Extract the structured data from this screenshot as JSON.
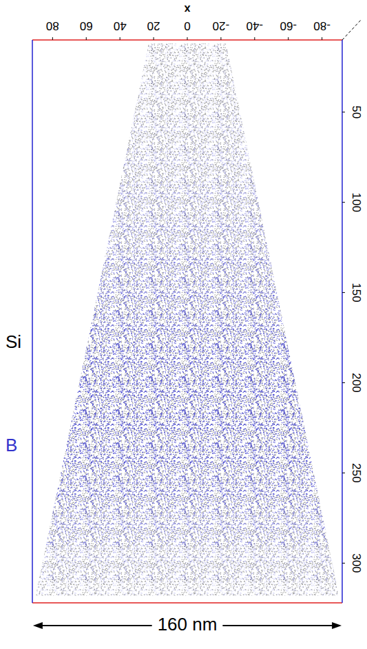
{
  "chart_data": {
    "type": "tomography",
    "x_label": "x",
    "xlim": [
      92,
      -92
    ],
    "xticks": [
      80,
      60,
      40,
      20,
      0,
      -20,
      -40,
      -60,
      -80
    ],
    "ylim": [
      10,
      322
    ],
    "yticks": [
      50,
      100,
      150,
      200,
      250,
      300
    ],
    "outline": {
      "depth": [
        12,
        318
      ],
      "x_left": [
        23,
        90
      ],
      "x_right": [
        -23,
        -90
      ]
    },
    "series": [
      {
        "name": "Si",
        "color": "#9a9a9a"
      },
      {
        "name": "B",
        "color": "#3333cc",
        "depth": [
          20,
          40,
          60,
          80,
          100,
          120,
          140,
          160,
          180,
          200,
          220,
          240,
          260,
          280,
          300,
          320
        ],
        "density": [
          0.15,
          0.2,
          0.25,
          0.3,
          0.4,
          0.5,
          0.65,
          0.75,
          0.85,
          0.9,
          0.9,
          0.85,
          0.75,
          0.55,
          0.3,
          0.15
        ]
      }
    ],
    "legend": "left",
    "scale_label": "160 nm"
  }
}
